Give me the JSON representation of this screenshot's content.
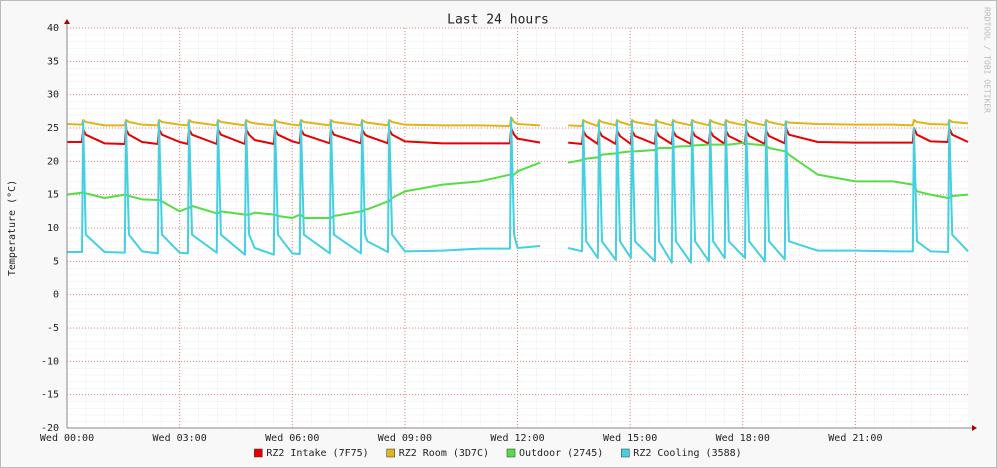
{
  "chart_data": {
    "type": "line",
    "title": "Last 24 hours",
    "y_label": "Temperature (°C)",
    "side_text": "RRDTOOL / TOBI OETIKER",
    "xlim": [
      0,
      24
    ],
    "ylim": [
      -20,
      40
    ],
    "grid": true,
    "yticks": [
      -20,
      -15,
      -10,
      -5,
      0,
      5,
      10,
      15,
      20,
      25,
      30,
      35,
      40
    ],
    "xticks": [
      {
        "value": 0,
        "label": "Wed 00:00"
      },
      {
        "value": 3,
        "label": "Wed 03:00"
      },
      {
        "value": 6,
        "label": "Wed 06:00"
      },
      {
        "value": 9,
        "label": "Wed 09:00"
      },
      {
        "value": 12,
        "label": "Wed 12:00"
      },
      {
        "value": 15,
        "label": "Wed 15:00"
      },
      {
        "value": 18,
        "label": "Wed 18:00"
      },
      {
        "value": 21,
        "label": "Wed 21:00"
      }
    ],
    "x": [
      0,
      0.4,
      0.43,
      0.5,
      1,
      1.54,
      1.57,
      1.65,
      2,
      2.42,
      2.45,
      2.53,
      3,
      3.22,
      3.25,
      3.33,
      3.99,
      4.02,
      4.1,
      4.74,
      4.77,
      4.85,
      5,
      5.51,
      5.54,
      5.62,
      6,
      6.2,
      6.23,
      6.31,
      7,
      7.03,
      7.11,
      7.83,
      7.86,
      7.94,
      8,
      8.55,
      8.58,
      8.66,
      9,
      10,
      11,
      11.8,
      11.83,
      11.91,
      12,
      12.6,
      13,
      13.35,
      13.72,
      13.75,
      13.83,
      14.14,
      14.17,
      14.25,
      14.62,
      14.65,
      14.73,
      15.02,
      15.05,
      15.13,
      15.66,
      15.69,
      15.77,
      16.11,
      16.14,
      16.22,
      16.62,
      16.65,
      16.73,
      17.1,
      17.13,
      17.21,
      17.52,
      17.55,
      17.63,
      18.06,
      18.09,
      18.17,
      18.59,
      18.62,
      18.7,
      19.12,
      19.15,
      19.23,
      20,
      21,
      22,
      22.53,
      22.56,
      22.64,
      23,
      23.47,
      23.5,
      23.58,
      24
    ],
    "series": [
      {
        "name": "RZ2 Intake (7F75)",
        "color": "#e80000",
        "values": [
          22.9,
          22.9,
          24.8,
          24,
          22.7,
          22.6,
          24.8,
          24,
          22.9,
          22.6,
          24.8,
          24,
          22.9,
          22.6,
          24.8,
          24,
          22.6,
          24.8,
          24,
          22.6,
          24.8,
          24,
          23.2,
          22.6,
          24.8,
          24,
          23,
          22.7,
          24.8,
          24,
          22.7,
          24.8,
          24,
          22.7,
          24.8,
          24,
          23.8,
          22.7,
          24.8,
          24,
          23,
          22.7,
          22.7,
          22.7,
          25,
          24,
          23.4,
          22.8,
          null,
          22.8,
          22.6,
          24.6,
          23.8,
          22.6,
          24.6,
          23.8,
          22.6,
          24.6,
          23.8,
          22.6,
          24.6,
          23.8,
          22.6,
          24.6,
          23.8,
          22.6,
          24.6,
          23.8,
          22.6,
          24.6,
          23.8,
          22.6,
          24.6,
          23.8,
          22.6,
          24.6,
          23.8,
          22.6,
          24.6,
          23.8,
          22.6,
          24.6,
          23.8,
          22.7,
          25,
          24,
          22.9,
          22.8,
          22.8,
          22.8,
          25,
          24,
          23,
          22.9,
          25,
          24,
          22.9
        ]
      },
      {
        "name": "RZ2 Room (3D7C)",
        "color": "#e0b41c",
        "values": [
          25.6,
          25.5,
          26.2,
          25.9,
          25.4,
          25.4,
          26.2,
          25.9,
          25.5,
          25.4,
          26.2,
          25.9,
          25.5,
          25.4,
          26.2,
          25.9,
          25.4,
          26.2,
          25.9,
          25.4,
          26.2,
          25.9,
          25.7,
          25.4,
          26.2,
          25.9,
          25.5,
          25.4,
          26.2,
          25.9,
          25.4,
          26.2,
          25.9,
          25.4,
          26.2,
          25.9,
          25.8,
          25.4,
          26.2,
          25.9,
          25.5,
          25.4,
          25.4,
          25.3,
          26.6,
          25.9,
          25.6,
          25.4,
          null,
          25.4,
          25.3,
          26.2,
          25.9,
          25.3,
          26.2,
          25.9,
          25.4,
          26.2,
          25.9,
          25.4,
          26.2,
          25.9,
          25.4,
          26.2,
          25.9,
          25.4,
          26.2,
          25.9,
          25.4,
          26.2,
          25.9,
          25.4,
          26.2,
          25.9,
          25.4,
          26.2,
          25.9,
          25.4,
          26.2,
          25.9,
          25.4,
          26.2,
          25.9,
          25.4,
          26,
          25.8,
          25.6,
          25.5,
          25.5,
          25.4,
          26.2,
          25.9,
          25.6,
          25.5,
          26.2,
          25.9,
          25.7
        ]
      },
      {
        "name": "Outdoor (2745)",
        "color": "#55dd44",
        "values": [
          15,
          15.3,
          15.3,
          15.2,
          14.5,
          15,
          15,
          14.8,
          14.3,
          14.2,
          14.2,
          14,
          12.5,
          13,
          13,
          13.3,
          12.2,
          12.2,
          12.5,
          12,
          12,
          12,
          12.3,
          12,
          12,
          11.8,
          11.5,
          12,
          12,
          11.5,
          11.5,
          11.5,
          11.8,
          12.5,
          12.5,
          12.8,
          12.8,
          14,
          14,
          14.5,
          15.5,
          16.5,
          17,
          18,
          18,
          18,
          18.5,
          19.8,
          null,
          19.8,
          20.2,
          20.2,
          20.4,
          20.6,
          20.6,
          21,
          21.2,
          21.2,
          21.3,
          21.5,
          21.5,
          21.5,
          21.7,
          21.7,
          22,
          22,
          22,
          22.2,
          22.3,
          22.3,
          22.4,
          22.5,
          22.5,
          22.5,
          22.5,
          22.5,
          22.5,
          22.8,
          22.8,
          22.6,
          22.4,
          22.4,
          22,
          21.5,
          21.5,
          21,
          18,
          17,
          17,
          16.5,
          16.5,
          15.5,
          15,
          14.5,
          14.5,
          14.8,
          15
        ]
      },
      {
        "name": "RZ2 Cooling (3588)",
        "color": "#44d0e0",
        "values": [
          6.4,
          6.4,
          26,
          9,
          6.4,
          6.3,
          26,
          9,
          6.5,
          6.2,
          26,
          9,
          6.3,
          6.2,
          26,
          9,
          6.3,
          26,
          9,
          6,
          26,
          9,
          7,
          6,
          26,
          9,
          6.2,
          6.1,
          26,
          9,
          6.2,
          26,
          9,
          6.2,
          26,
          9,
          8,
          6.4,
          26,
          9,
          6.5,
          6.6,
          6.9,
          6.9,
          26.5,
          9,
          7,
          7.3,
          null,
          7,
          6.5,
          26,
          8,
          5.5,
          26,
          8,
          5.2,
          26,
          8,
          5.5,
          26,
          8,
          5,
          26,
          8,
          4.8,
          26,
          8,
          4.8,
          26,
          8,
          5,
          26,
          8,
          5.5,
          26,
          8,
          5.5,
          26,
          8,
          5,
          26,
          8,
          5.3,
          26,
          8,
          6.6,
          6.6,
          6.5,
          6.5,
          25,
          8,
          6.5,
          6.4,
          26,
          9,
          6.5
        ]
      }
    ]
  }
}
